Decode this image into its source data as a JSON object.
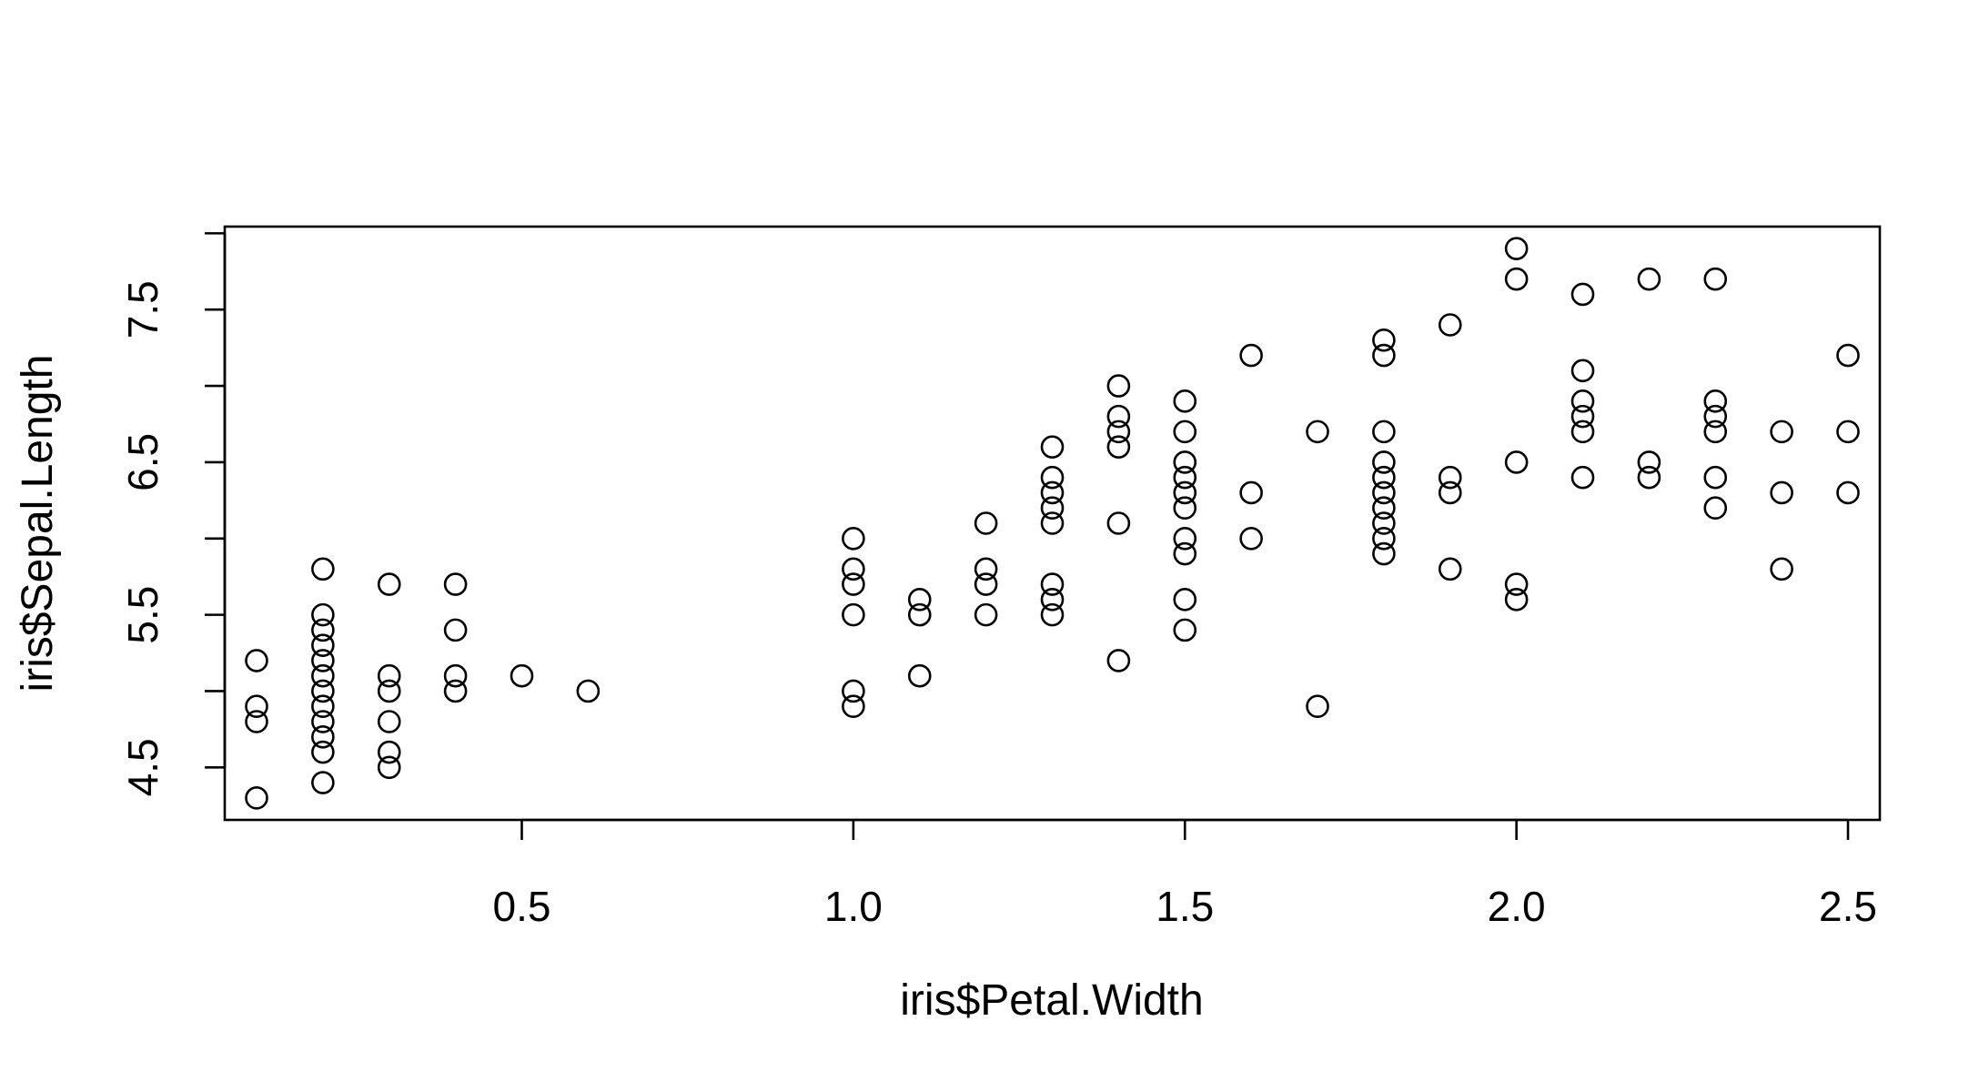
{
  "chart_data": {
    "type": "scatter",
    "title": "",
    "xlabel": "iris$Petal.Width",
    "ylabel": "iris$Sepal.Length",
    "xlim": [
      0.052,
      2.548
    ],
    "ylim": [
      4.156,
      8.044
    ],
    "xticks": [
      0.5,
      1.0,
      1.5,
      2.0,
      2.5
    ],
    "xtick_labels": [
      "0.5",
      "1.0",
      "1.5",
      "2.0",
      "2.5"
    ],
    "yticks": [
      4.5,
      5.0,
      5.5,
      6.0,
      6.5,
      7.0,
      7.5,
      8.0
    ],
    "ytick_labels": [
      "4.5",
      "",
      "5.5",
      "",
      "6.5",
      "",
      "7.5",
      ""
    ],
    "grid": false,
    "marker": "open-circle",
    "colors": {
      "marker": "#000000",
      "axis": "#000000",
      "background": "#ffffff"
    },
    "points": [
      [
        0.1,
        4.3
      ],
      [
        0.1,
        4.8
      ],
      [
        0.1,
        4.9
      ],
      [
        0.1,
        5.2
      ],
      [
        0.2,
        4.4
      ],
      [
        0.2,
        4.6
      ],
      [
        0.2,
        4.7
      ],
      [
        0.2,
        4.8
      ],
      [
        0.2,
        4.9
      ],
      [
        0.2,
        5.0
      ],
      [
        0.2,
        5.1
      ],
      [
        0.2,
        5.2
      ],
      [
        0.2,
        5.3
      ],
      [
        0.2,
        5.4
      ],
      [
        0.2,
        5.5
      ],
      [
        0.2,
        5.8
      ],
      [
        0.3,
        4.5
      ],
      [
        0.3,
        4.6
      ],
      [
        0.3,
        4.8
      ],
      [
        0.3,
        5.0
      ],
      [
        0.3,
        5.1
      ],
      [
        0.3,
        5.7
      ],
      [
        0.4,
        5.0
      ],
      [
        0.4,
        5.1
      ],
      [
        0.4,
        5.4
      ],
      [
        0.4,
        5.7
      ],
      [
        0.5,
        5.1
      ],
      [
        0.6,
        5.0
      ],
      [
        1.0,
        4.9
      ],
      [
        1.0,
        5.0
      ],
      [
        1.0,
        5.5
      ],
      [
        1.0,
        5.7
      ],
      [
        1.0,
        5.8
      ],
      [
        1.0,
        6.0
      ],
      [
        1.1,
        5.1
      ],
      [
        1.1,
        5.5
      ],
      [
        1.1,
        5.6
      ],
      [
        1.2,
        5.5
      ],
      [
        1.2,
        5.7
      ],
      [
        1.2,
        5.8
      ],
      [
        1.2,
        6.1
      ],
      [
        1.3,
        5.5
      ],
      [
        1.3,
        5.6
      ],
      [
        1.3,
        5.7
      ],
      [
        1.3,
        6.1
      ],
      [
        1.3,
        6.2
      ],
      [
        1.3,
        6.3
      ],
      [
        1.3,
        6.4
      ],
      [
        1.3,
        6.6
      ],
      [
        1.4,
        5.2
      ],
      [
        1.4,
        6.1
      ],
      [
        1.4,
        6.6
      ],
      [
        1.4,
        6.7
      ],
      [
        1.4,
        6.8
      ],
      [
        1.4,
        7.0
      ],
      [
        1.5,
        5.4
      ],
      [
        1.5,
        5.6
      ],
      [
        1.5,
        5.9
      ],
      [
        1.5,
        6.0
      ],
      [
        1.5,
        6.2
      ],
      [
        1.5,
        6.3
      ],
      [
        1.5,
        6.4
      ],
      [
        1.5,
        6.5
      ],
      [
        1.5,
        6.7
      ],
      [
        1.5,
        6.9
      ],
      [
        1.6,
        6.0
      ],
      [
        1.6,
        6.3
      ],
      [
        1.6,
        7.2
      ],
      [
        1.7,
        4.9
      ],
      [
        1.7,
        6.7
      ],
      [
        1.8,
        5.9
      ],
      [
        1.8,
        6.0
      ],
      [
        1.8,
        6.1
      ],
      [
        1.8,
        6.2
      ],
      [
        1.8,
        6.3
      ],
      [
        1.8,
        6.4
      ],
      [
        1.8,
        6.5
      ],
      [
        1.8,
        6.7
      ],
      [
        1.8,
        7.2
      ],
      [
        1.8,
        7.3
      ],
      [
        1.9,
        5.8
      ],
      [
        1.9,
        6.3
      ],
      [
        1.9,
        6.4
      ],
      [
        1.9,
        7.4
      ],
      [
        2.0,
        5.6
      ],
      [
        2.0,
        5.7
      ],
      [
        2.0,
        6.5
      ],
      [
        2.0,
        7.7
      ],
      [
        2.0,
        7.9
      ],
      [
        2.1,
        6.4
      ],
      [
        2.1,
        6.7
      ],
      [
        2.1,
        6.8
      ],
      [
        2.1,
        6.9
      ],
      [
        2.1,
        7.1
      ],
      [
        2.1,
        7.6
      ],
      [
        2.2,
        6.4
      ],
      [
        2.2,
        6.5
      ],
      [
        2.2,
        7.7
      ],
      [
        2.3,
        6.2
      ],
      [
        2.3,
        6.4
      ],
      [
        2.3,
        6.7
      ],
      [
        2.3,
        6.8
      ],
      [
        2.3,
        6.9
      ],
      [
        2.3,
        7.7
      ],
      [
        2.4,
        5.8
      ],
      [
        2.4,
        6.3
      ],
      [
        2.4,
        6.7
      ],
      [
        2.5,
        6.3
      ],
      [
        2.5,
        6.7
      ],
      [
        2.5,
        7.2
      ]
    ]
  }
}
